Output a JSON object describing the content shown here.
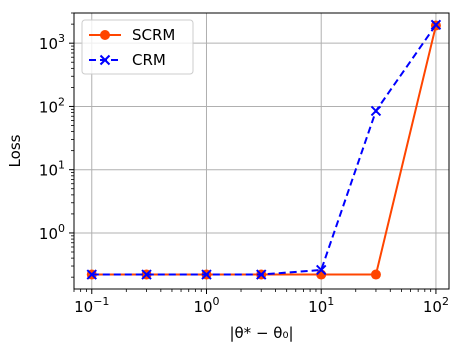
{
  "chart_data": {
    "type": "line",
    "title": "",
    "xlabel": "|θ* − θ₀|",
    "ylabel": "Loss",
    "xscale": "log",
    "yscale": "log",
    "xlim": [
      0.07,
      130
    ],
    "ylim": [
      0.13,
      3000
    ],
    "grid": true,
    "legend_position": "top-left",
    "x_ticks": [
      {
        "value": 0.1,
        "base": "10",
        "exp": "−1"
      },
      {
        "value": 1,
        "base": "10",
        "exp": "0"
      },
      {
        "value": 10,
        "base": "10",
        "exp": "1"
      },
      {
        "value": 100,
        "base": "10",
        "exp": "2"
      }
    ],
    "y_ticks": [
      {
        "value": 1,
        "base": "10",
        "exp": "0"
      },
      {
        "value": 10,
        "base": "10",
        "exp": "1"
      },
      {
        "value": 100,
        "base": "10",
        "exp": "2"
      },
      {
        "value": 1000,
        "base": "10",
        "exp": "3"
      }
    ],
    "series": [
      {
        "name": "SCRM",
        "color": "#ff4500",
        "line_style": "solid",
        "marker": "circle",
        "x": [
          0.1,
          0.3,
          1,
          3,
          10,
          30,
          100
        ],
        "y": [
          0.22,
          0.22,
          0.22,
          0.22,
          0.22,
          0.22,
          1900
        ]
      },
      {
        "name": "CRM",
        "color": "#0000ff",
        "line_style": "dashed",
        "marker": "x",
        "x": [
          0.1,
          0.3,
          1,
          3,
          10,
          30,
          100
        ],
        "y": [
          0.22,
          0.22,
          0.22,
          0.22,
          0.26,
          85,
          1950
        ]
      }
    ]
  }
}
